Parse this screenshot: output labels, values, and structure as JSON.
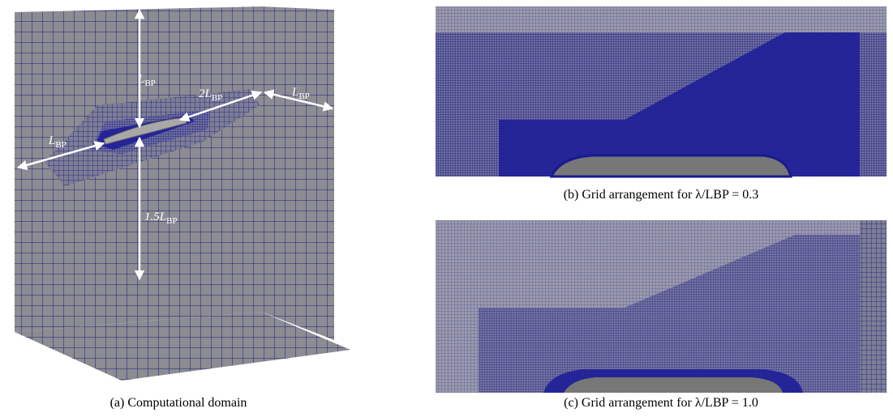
{
  "labels": {
    "top": {
      "main": "L",
      "sub": "BP"
    },
    "aft": {
      "main": "2L",
      "sub": "BP"
    },
    "side": {
      "main": "L",
      "sub": "BP"
    },
    "fore": {
      "main": "L",
      "sub": "BP"
    },
    "depth": {
      "main": "1.5L",
      "sub": "BP"
    }
  },
  "captions": {
    "a": "(a) Computational domain",
    "b": "(b) Grid arrangement for λ/LBP = 0.3",
    "c": "(c) Grid arrangement for λ/LBP = 1.0"
  }
}
